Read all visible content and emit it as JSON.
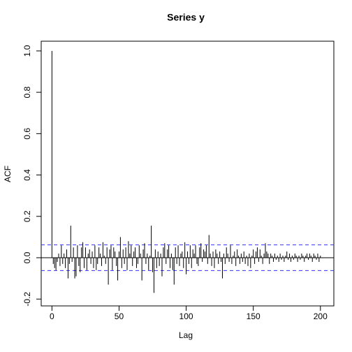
{
  "chart_data": {
    "type": "acf",
    "title": "Series  y",
    "xlabel": "Lag",
    "ylabel": "ACF",
    "x": [
      0,
      1,
      2,
      3,
      4,
      5,
      6,
      7,
      8,
      9,
      10,
      11,
      12,
      13,
      14,
      15,
      16,
      17,
      18,
      19,
      20,
      21,
      22,
      23,
      24,
      25,
      26,
      27,
      28,
      29,
      30,
      31,
      32,
      33,
      34,
      35,
      36,
      37,
      38,
      39,
      40,
      41,
      42,
      43,
      44,
      45,
      46,
      47,
      48,
      49,
      50,
      51,
      52,
      53,
      54,
      55,
      56,
      57,
      58,
      59,
      60,
      61,
      62,
      63,
      64,
      65,
      66,
      67,
      68,
      69,
      70,
      71,
      72,
      73,
      74,
      75,
      76,
      77,
      78,
      79,
      80,
      81,
      82,
      83,
      84,
      85,
      86,
      87,
      88,
      89,
      90,
      91,
      92,
      93,
      94,
      95,
      96,
      97,
      98,
      99,
      100,
      101,
      102,
      103,
      104,
      105,
      106,
      107,
      108,
      109,
      110,
      111,
      112,
      113,
      114,
      115,
      116,
      117,
      118,
      119,
      120,
      121,
      122,
      123,
      124,
      125,
      126,
      127,
      128,
      129,
      130,
      131,
      132,
      133,
      134,
      135,
      136,
      137,
      138,
      139,
      140,
      141,
      142,
      143,
      144,
      145,
      146,
      147,
      148,
      149,
      150,
      151,
      152,
      153,
      154,
      155,
      156,
      157,
      158,
      159,
      160,
      161,
      162,
      163,
      164,
      165,
      166,
      167,
      168,
      169,
      170,
      171,
      172,
      173,
      174,
      175,
      176,
      177,
      178,
      179,
      180,
      181,
      182,
      183,
      184,
      185,
      186,
      187,
      188,
      189,
      190,
      191,
      192,
      193,
      194,
      195,
      196,
      197,
      198,
      199,
      200
    ],
    "values": [
      1,
      -0.03,
      -0.05,
      -0.06,
      -0.02,
      0.02,
      -0.04,
      0.06,
      -0.03,
      0.02,
      -0.05,
      0.04,
      -0.1,
      -0.03,
      0.155,
      -0.02,
      0.05,
      -0.1,
      -0.09,
      0.06,
      -0.04,
      -0.07,
      0.05,
      0.075,
      -0.05,
      0.05,
      -0.06,
      0.02,
      0.04,
      -0.03,
      0.03,
      -0.05,
      0.06,
      -0.06,
      -0.03,
      0.05,
      0.02,
      -0.04,
      0.075,
      0.01,
      -0.03,
      0.05,
      -0.13,
      0.04,
      0.06,
      -0.06,
      0.05,
      0.03,
      -0.04,
      -0.11,
      0.03,
      0.1,
      -0.05,
      0.04,
      -0.03,
      0.05,
      -0.06,
      0.08,
      0.02,
      0.06,
      -0.04,
      0.03,
      0.05,
      -0.05,
      -0.03,
      0.06,
      0.02,
      -0.11,
      0.04,
      0.07,
      -0.03,
      0.02,
      -0.06,
      0.01,
      0.155,
      -0.07,
      -0.17,
      0.04,
      -0.05,
      0.03,
      -0.04,
      0.02,
      -0.09,
      0.05,
      0.07,
      -0.03,
      0.04,
      0.06,
      -0.05,
      0.02,
      -0.06,
      -0.13,
      0.05,
      -0.03,
      0.06,
      -0.04,
      0.02,
      0.03,
      -0.05,
      0.075,
      -0.08,
      0.03,
      -0.03,
      0.06,
      -0.05,
      0.04,
      0.02,
      0.06,
      -0.03,
      -0.04,
      0.05,
      0.07,
      -0.02,
      0.04,
      0.03,
      0.06,
      -0.03,
      0.11,
      0.02,
      -0.04,
      0.03,
      -0.05,
      0.04,
      0.02,
      -0.03,
      0.03,
      -0.02,
      -0.1,
      0.02,
      -0.03,
      0.05,
      0.02,
      -0.02,
      0.06,
      -0.03,
      0.01,
      0.03,
      -0.04,
      0.04,
      0.01,
      -0.03,
      0.02,
      -0.02,
      0.03,
      -0.03,
      0.01,
      -0.04,
      0.02,
      -0.05,
      0.01,
      0.04,
      -0.03,
      0.03,
      0.05,
      -0.02,
      0.04,
      0.01,
      -0.03,
      0.02,
      0.07,
      0.03,
      0.02,
      -0.03,
      0.02,
      0.01,
      -0.02,
      0.02,
      -0.01,
      0.01,
      -0.02,
      0.02,
      -0.01,
      0.01,
      -0.02,
      0.01,
      0.03,
      -0.01,
      0.02,
      -0.02,
      0.01,
      -0.01,
      0.02,
      0.01,
      -0.02,
      0.01,
      -0.01,
      0.02,
      0.01,
      -0.02,
      0.01,
      0.02,
      -0.01,
      0.02,
      0.01,
      -0.02,
      0.02,
      0.01,
      -0.01,
      0.02,
      -0.02,
      0.01
    ],
    "color": "#000000",
    "conf_lines": [
      -0.062,
      0.062
    ],
    "conf_color": "#3333ff",
    "xlim": [
      -8,
      210
    ],
    "ylim": [
      -0.233,
      1.047
    ],
    "xticks": [
      0,
      50,
      100,
      150,
      200
    ],
    "yticks": [
      -0.2,
      {
        "value": 0,
        "label": "0.0"
      },
      0.2,
      0.4,
      0.6,
      0.8,
      {
        "value": 1,
        "label": "1.0"
      }
    ]
  }
}
